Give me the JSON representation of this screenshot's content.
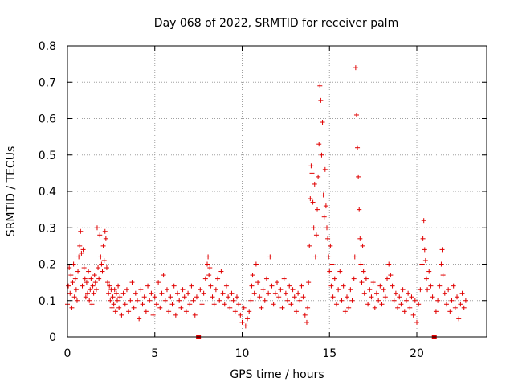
{
  "chart_data": {
    "type": "scatter",
    "title": "Day 068 of 2022, SRMTID for receiver palm",
    "xlabel": "GPS time / hours",
    "ylabel": "SRMTID / TECUs",
    "xlim": [
      0,
      24
    ],
    "ylim": [
      0,
      0.8
    ],
    "x_ticks": [
      0,
      5,
      10,
      15,
      20
    ],
    "x_tick_labels": [
      "0",
      "5",
      "10",
      "15",
      "20"
    ],
    "y_ticks": [
      0,
      0.1,
      0.2,
      0.3,
      0.4,
      0.5,
      0.6,
      0.7,
      0.8
    ],
    "y_tick_labels": [
      "0",
      "0.1",
      "0.2",
      "0.3",
      "0.4",
      "0.5",
      "0.6",
      "0.7",
      "0.8"
    ],
    "grid": true,
    "marker": "+",
    "color": "#e00000",
    "data_gaps_x": [
      7.5,
      21.0
    ],
    "series": [
      {
        "name": "SRMTID",
        "points": [
          [
            0.0,
            0.09
          ],
          [
            0.05,
            0.14
          ],
          [
            0.1,
            0.19
          ],
          [
            0.15,
            0.12
          ],
          [
            0.2,
            0.17
          ],
          [
            0.25,
            0.08
          ],
          [
            0.3,
            0.15
          ],
          [
            0.35,
            0.2
          ],
          [
            0.4,
            0.11
          ],
          [
            0.45,
            0.16
          ],
          [
            0.5,
            0.13
          ],
          [
            0.55,
            0.1
          ],
          [
            0.6,
            0.18
          ],
          [
            0.65,
            0.22
          ],
          [
            0.7,
            0.25
          ],
          [
            0.75,
            0.29
          ],
          [
            0.8,
            0.23
          ],
          [
            0.85,
            0.14
          ],
          [
            0.9,
            0.24
          ],
          [
            0.95,
            0.19
          ],
          [
            1.0,
            0.16
          ],
          [
            1.05,
            0.11
          ],
          [
            1.1,
            0.15
          ],
          [
            1.15,
            0.12
          ],
          [
            1.2,
            0.18
          ],
          [
            1.25,
            0.1
          ],
          [
            1.3,
            0.13
          ],
          [
            1.35,
            0.16
          ],
          [
            1.4,
            0.09
          ],
          [
            1.45,
            0.14
          ],
          [
            1.5,
            0.12
          ],
          [
            1.55,
            0.17
          ],
          [
            1.6,
            0.15
          ],
          [
            1.65,
            0.13
          ],
          [
            1.7,
            0.3
          ],
          [
            1.75,
            0.19
          ],
          [
            1.8,
            0.16
          ],
          [
            1.85,
            0.28
          ],
          [
            1.9,
            0.22
          ],
          [
            1.95,
            0.2
          ],
          [
            2.0,
            0.18
          ],
          [
            2.05,
            0.25
          ],
          [
            2.1,
            0.21
          ],
          [
            2.15,
            0.29
          ],
          [
            2.2,
            0.27
          ],
          [
            2.25,
            0.19
          ],
          [
            2.3,
            0.15
          ],
          [
            2.35,
            0.12
          ],
          [
            2.4,
            0.14
          ],
          [
            2.45,
            0.1
          ],
          [
            2.5,
            0.13
          ],
          [
            2.55,
            0.08
          ],
          [
            2.6,
            0.11
          ],
          [
            2.65,
            0.09
          ],
          [
            2.7,
            0.13
          ],
          [
            2.75,
            0.07
          ],
          [
            2.8,
            0.12
          ],
          [
            2.85,
            0.1
          ],
          [
            2.9,
            0.14
          ],
          [
            2.95,
            0.08
          ],
          [
            3.0,
            0.11
          ],
          [
            3.1,
            0.06
          ],
          [
            3.2,
            0.12
          ],
          [
            3.3,
            0.09
          ],
          [
            3.4,
            0.13
          ],
          [
            3.5,
            0.07
          ],
          [
            3.6,
            0.1
          ],
          [
            3.7,
            0.15
          ],
          [
            3.8,
            0.08
          ],
          [
            3.9,
            0.12
          ],
          [
            4.0,
            0.1
          ],
          [
            4.1,
            0.05
          ],
          [
            4.2,
            0.13
          ],
          [
            4.3,
            0.09
          ],
          [
            4.4,
            0.11
          ],
          [
            4.5,
            0.07
          ],
          [
            4.6,
            0.14
          ],
          [
            4.7,
            0.1
          ],
          [
            4.8,
            0.12
          ],
          [
            4.9,
            0.06
          ],
          [
            5.0,
            0.11
          ],
          [
            5.1,
            0.09
          ],
          [
            5.2,
            0.15
          ],
          [
            5.3,
            0.08
          ],
          [
            5.4,
            0.12
          ],
          [
            5.5,
            0.17
          ],
          [
            5.6,
            0.1
          ],
          [
            5.7,
            0.13
          ],
          [
            5.8,
            0.07
          ],
          [
            5.9,
            0.11
          ],
          [
            6.0,
            0.09
          ],
          [
            6.1,
            0.14
          ],
          [
            6.2,
            0.06
          ],
          [
            6.3,
            0.12
          ],
          [
            6.4,
            0.1
          ],
          [
            6.5,
            0.08
          ],
          [
            6.6,
            0.13
          ],
          [
            6.7,
            0.11
          ],
          [
            6.8,
            0.07
          ],
          [
            6.9,
            0.12
          ],
          [
            7.0,
            0.09
          ],
          [
            7.1,
            0.14
          ],
          [
            7.2,
            0.1
          ],
          [
            7.3,
            0.06
          ],
          [
            7.4,
            0.11
          ],
          [
            7.6,
            0.13
          ],
          [
            7.7,
            0.09
          ],
          [
            7.8,
            0.12
          ],
          [
            7.9,
            0.16
          ],
          [
            8.0,
            0.2
          ],
          [
            8.05,
            0.22
          ],
          [
            8.1,
            0.17
          ],
          [
            8.15,
            0.19
          ],
          [
            8.2,
            0.14
          ],
          [
            8.3,
            0.11
          ],
          [
            8.4,
            0.09
          ],
          [
            8.5,
            0.13
          ],
          [
            8.6,
            0.16
          ],
          [
            8.7,
            0.1
          ],
          [
            8.8,
            0.18
          ],
          [
            8.9,
            0.12
          ],
          [
            9.0,
            0.09
          ],
          [
            9.1,
            0.14
          ],
          [
            9.2,
            0.11
          ],
          [
            9.3,
            0.08
          ],
          [
            9.4,
            0.12
          ],
          [
            9.5,
            0.1
          ],
          [
            9.6,
            0.07
          ],
          [
            9.7,
            0.11
          ],
          [
            9.8,
            0.09
          ],
          [
            9.9,
            0.06
          ],
          [
            10.0,
            0.04
          ],
          [
            10.1,
            0.08
          ],
          [
            10.2,
            0.03
          ],
          [
            10.3,
            0.05
          ],
          [
            10.4,
            0.07
          ],
          [
            10.5,
            0.1
          ],
          [
            10.55,
            0.14
          ],
          [
            10.6,
            0.17
          ],
          [
            10.7,
            0.12
          ],
          [
            10.8,
            0.2
          ],
          [
            10.9,
            0.15
          ],
          [
            11.0,
            0.11
          ],
          [
            11.1,
            0.08
          ],
          [
            11.2,
            0.13
          ],
          [
            11.3,
            0.1
          ],
          [
            11.4,
            0.16
          ],
          [
            11.5,
            0.12
          ],
          [
            11.6,
            0.22
          ],
          [
            11.7,
            0.14
          ],
          [
            11.8,
            0.09
          ],
          [
            11.9,
            0.12
          ],
          [
            12.0,
            0.15
          ],
          [
            12.1,
            0.11
          ],
          [
            12.2,
            0.13
          ],
          [
            12.3,
            0.08
          ],
          [
            12.4,
            0.16
          ],
          [
            12.5,
            0.12
          ],
          [
            12.6,
            0.1
          ],
          [
            12.7,
            0.14
          ],
          [
            12.8,
            0.09
          ],
          [
            12.9,
            0.13
          ],
          [
            13.0,
            0.11
          ],
          [
            13.1,
            0.07
          ],
          [
            13.2,
            0.12
          ],
          [
            13.3,
            0.1
          ],
          [
            13.4,
            0.14
          ],
          [
            13.5,
            0.11
          ],
          [
            13.6,
            0.06
          ],
          [
            13.7,
            0.04
          ],
          [
            13.75,
            0.08
          ],
          [
            13.8,
            0.15
          ],
          [
            13.85,
            0.25
          ],
          [
            13.9,
            0.38
          ],
          [
            13.95,
            0.47
          ],
          [
            14.0,
            0.45
          ],
          [
            14.05,
            0.37
          ],
          [
            14.1,
            0.3
          ],
          [
            14.15,
            0.42
          ],
          [
            14.2,
            0.22
          ],
          [
            14.25,
            0.28
          ],
          [
            14.3,
            0.35
          ],
          [
            14.35,
            0.44
          ],
          [
            14.4,
            0.53
          ],
          [
            14.45,
            0.69
          ],
          [
            14.5,
            0.65
          ],
          [
            14.55,
            0.5
          ],
          [
            14.6,
            0.59
          ],
          [
            14.65,
            0.39
          ],
          [
            14.7,
            0.33
          ],
          [
            14.75,
            0.46
          ],
          [
            14.8,
            0.36
          ],
          [
            14.85,
            0.3
          ],
          [
            14.9,
            0.27
          ],
          [
            14.95,
            0.22
          ],
          [
            15.0,
            0.18
          ],
          [
            15.05,
            0.25
          ],
          [
            15.1,
            0.14
          ],
          [
            15.15,
            0.2
          ],
          [
            15.2,
            0.11
          ],
          [
            15.3,
            0.16
          ],
          [
            15.4,
            0.09
          ],
          [
            15.5,
            0.13
          ],
          [
            15.6,
            0.18
          ],
          [
            15.7,
            0.1
          ],
          [
            15.8,
            0.14
          ],
          [
            15.9,
            0.07
          ],
          [
            16.0,
            0.11
          ],
          [
            16.1,
            0.08
          ],
          [
            16.2,
            0.13
          ],
          [
            16.3,
            0.1
          ],
          [
            16.4,
            0.16
          ],
          [
            16.45,
            0.22
          ],
          [
            16.5,
            0.74
          ],
          [
            16.55,
            0.61
          ],
          [
            16.6,
            0.52
          ],
          [
            16.65,
            0.44
          ],
          [
            16.7,
            0.35
          ],
          [
            16.75,
            0.27
          ],
          [
            16.8,
            0.2
          ],
          [
            16.85,
            0.15
          ],
          [
            16.9,
            0.25
          ],
          [
            16.95,
            0.18
          ],
          [
            17.0,
            0.12
          ],
          [
            17.1,
            0.16
          ],
          [
            17.2,
            0.09
          ],
          [
            17.3,
            0.13
          ],
          [
            17.4,
            0.11
          ],
          [
            17.5,
            0.15
          ],
          [
            17.6,
            0.08
          ],
          [
            17.7,
            0.12
          ],
          [
            17.8,
            0.1
          ],
          [
            17.9,
            0.14
          ],
          [
            18.0,
            0.09
          ],
          [
            18.1,
            0.13
          ],
          [
            18.2,
            0.11
          ],
          [
            18.3,
            0.16
          ],
          [
            18.4,
            0.2
          ],
          [
            18.5,
            0.17
          ],
          [
            18.6,
            0.14
          ],
          [
            18.7,
            0.1
          ],
          [
            18.8,
            0.12
          ],
          [
            18.9,
            0.08
          ],
          [
            19.0,
            0.11
          ],
          [
            19.1,
            0.09
          ],
          [
            19.2,
            0.13
          ],
          [
            19.3,
            0.07
          ],
          [
            19.4,
            0.1
          ],
          [
            19.5,
            0.12
          ],
          [
            19.6,
            0.08
          ],
          [
            19.7,
            0.11
          ],
          [
            19.8,
            0.06
          ],
          [
            19.9,
            0.1
          ],
          [
            20.0,
            0.04
          ],
          [
            20.1,
            0.09
          ],
          [
            20.2,
            0.13
          ],
          [
            20.3,
            0.2
          ],
          [
            20.35,
            0.27
          ],
          [
            20.4,
            0.32
          ],
          [
            20.45,
            0.24
          ],
          [
            20.5,
            0.21
          ],
          [
            20.55,
            0.16
          ],
          [
            20.6,
            0.13
          ],
          [
            20.7,
            0.18
          ],
          [
            20.8,
            0.14
          ],
          [
            20.9,
            0.11
          ],
          [
            21.1,
            0.07
          ],
          [
            21.2,
            0.1
          ],
          [
            21.3,
            0.14
          ],
          [
            21.4,
            0.2
          ],
          [
            21.45,
            0.24
          ],
          [
            21.5,
            0.17
          ],
          [
            21.6,
            0.12
          ],
          [
            21.7,
            0.09
          ],
          [
            21.8,
            0.13
          ],
          [
            21.9,
            0.07
          ],
          [
            22.0,
            0.1
          ],
          [
            22.1,
            0.14
          ],
          [
            22.2,
            0.08
          ],
          [
            22.3,
            0.11
          ],
          [
            22.4,
            0.05
          ],
          [
            22.5,
            0.09
          ],
          [
            22.6,
            0.12
          ],
          [
            22.7,
            0.08
          ],
          [
            22.8,
            0.1
          ]
        ]
      }
    ]
  }
}
